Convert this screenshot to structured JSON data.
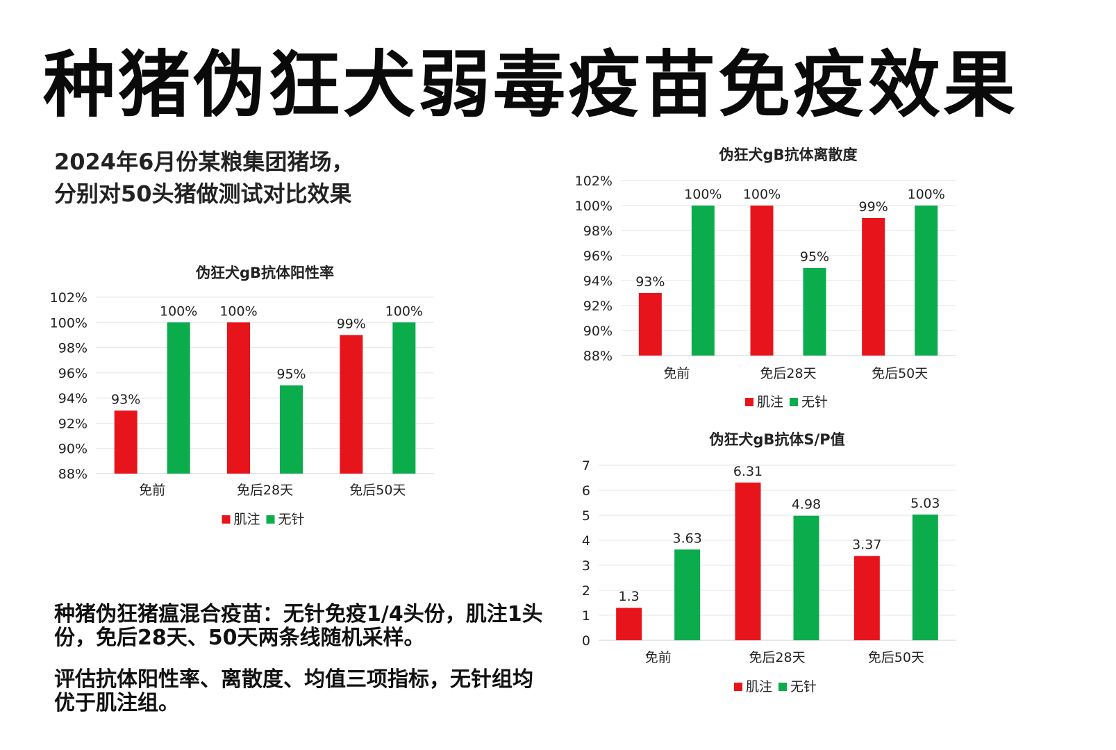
{
  "page": {
    "title": "种猪伪狂犬弱毒疫苗免疫效果",
    "intro_lines": [
      "2024年6月份某粮集团猪场，",
      "分别对50头猪做测试对比效果"
    ],
    "notes": [
      "种猪伪狂猪瘟混合疫苗：无针免疫1/4头份，肌注1头份，免后28天、50天两条线随机采样。",
      "评估抗体阳性率、离散度、均值三项指标，无针组均优于肌注组。"
    ]
  },
  "colors": {
    "intramuscular": "#e8141b",
    "needle_free": "#0aac4c",
    "grid": "#e6e6e6"
  },
  "chart_data": [
    {
      "type": "bar",
      "title": "伪狂犬gB抗体阳性率",
      "categories": [
        "免前",
        "免后28天",
        "免后50天"
      ],
      "series": [
        {
          "name": "肌注",
          "values": [
            93,
            100,
            99
          ],
          "labels": [
            "93%",
            "100%",
            "99%"
          ]
        },
        {
          "name": "无针",
          "values": [
            100,
            95,
            100
          ],
          "labels": [
            "100%",
            "95%",
            "100%"
          ]
        }
      ],
      "ylim": [
        88,
        102
      ],
      "yticks": [
        "88%",
        "90%",
        "92%",
        "94%",
        "96%",
        "98%",
        "100%",
        "102%"
      ],
      "grid": true,
      "legend": "bottom"
    },
    {
      "type": "bar",
      "title": "伪狂犬gB抗体离散度",
      "categories": [
        "免前",
        "免后28天",
        "免后50天"
      ],
      "series": [
        {
          "name": "肌注",
          "values": [
            93,
            100,
            99
          ],
          "labels": [
            "93%",
            "100%",
            "99%"
          ]
        },
        {
          "name": "无针",
          "values": [
            100,
            95,
            100
          ],
          "labels": [
            "100%",
            "95%",
            "100%"
          ]
        }
      ],
      "ylim": [
        88,
        102
      ],
      "yticks": [
        "88%",
        "90%",
        "92%",
        "94%",
        "96%",
        "98%",
        "100%",
        "102%"
      ],
      "grid": true,
      "legend": "bottom"
    },
    {
      "type": "bar",
      "title": "伪狂犬gB抗体S/P值",
      "categories": [
        "免前",
        "免后28天",
        "免后50天"
      ],
      "series": [
        {
          "name": "肌注",
          "values": [
            1.3,
            6.31,
            3.37
          ],
          "labels": [
            "1.3",
            "6.31",
            "3.37"
          ]
        },
        {
          "name": "无针",
          "values": [
            3.63,
            4.98,
            5.03
          ],
          "labels": [
            "3.63",
            "4.98",
            "5.03"
          ]
        }
      ],
      "ylim": [
        0,
        7
      ],
      "yticks": [
        "0",
        "1",
        "2",
        "3",
        "4",
        "5",
        "6",
        "7"
      ],
      "grid": true,
      "legend": "bottom"
    }
  ]
}
